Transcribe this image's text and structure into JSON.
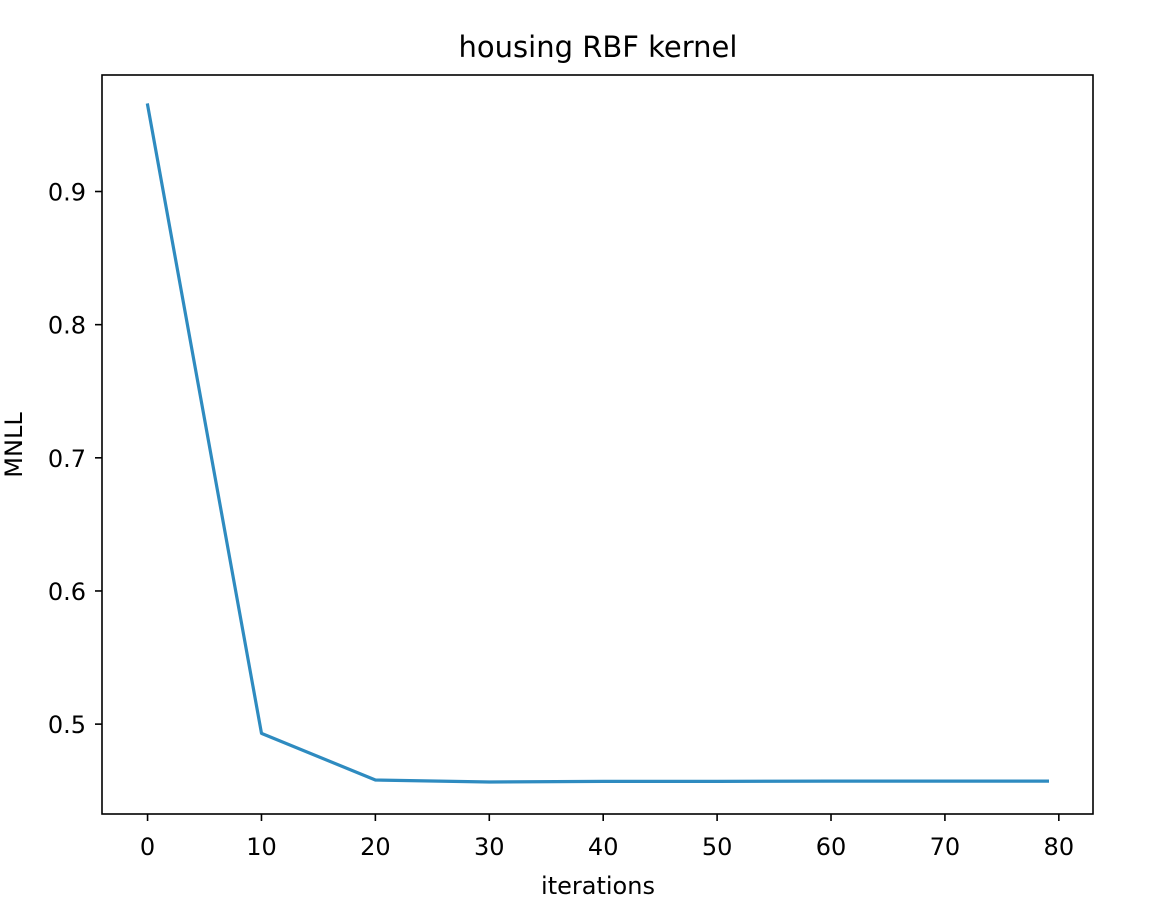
{
  "chart_data": {
    "type": "line",
    "title": "housing RBF kernel",
    "xlabel": "iterations",
    "ylabel": "MNLL",
    "xlim": [
      -4,
      83
    ],
    "ylim": [
      0.4325,
      0.9875
    ],
    "xticks": [
      0,
      10,
      20,
      30,
      40,
      50,
      60,
      70,
      80
    ],
    "yticks": [
      0.5,
      0.6,
      0.7,
      0.8,
      0.9
    ],
    "ytick_labels": [
      "0.5",
      "0.6",
      "0.7",
      "0.8",
      "0.9"
    ],
    "grid": false,
    "legend": "none",
    "series": [
      {
        "color": "#2e8bc0",
        "x": [
          0,
          10,
          20,
          30,
          40,
          50,
          60,
          70,
          79
        ],
        "y": [
          0.965,
          0.493,
          0.458,
          0.4565,
          0.457,
          0.457,
          0.4572,
          0.4572,
          0.4572
        ]
      }
    ]
  }
}
